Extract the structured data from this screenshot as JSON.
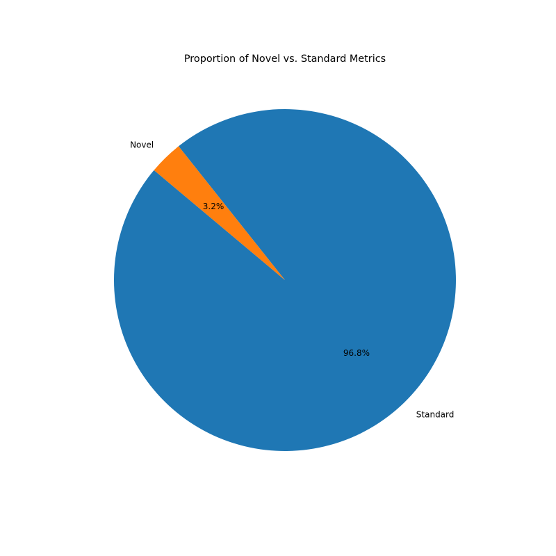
{
  "chart_data": {
    "type": "pie",
    "title": "Proportion of Novel vs. Standard Metrics",
    "start_angle_deg": 140,
    "counterclockwise": true,
    "slices": [
      {
        "label": "Standard",
        "value": 96.8,
        "pct_label": "96.8%",
        "color": "#1f77b4"
      },
      {
        "label": "Novel",
        "value": 3.2,
        "pct_label": "3.2%",
        "color": "#ff7f0e"
      }
    ]
  }
}
